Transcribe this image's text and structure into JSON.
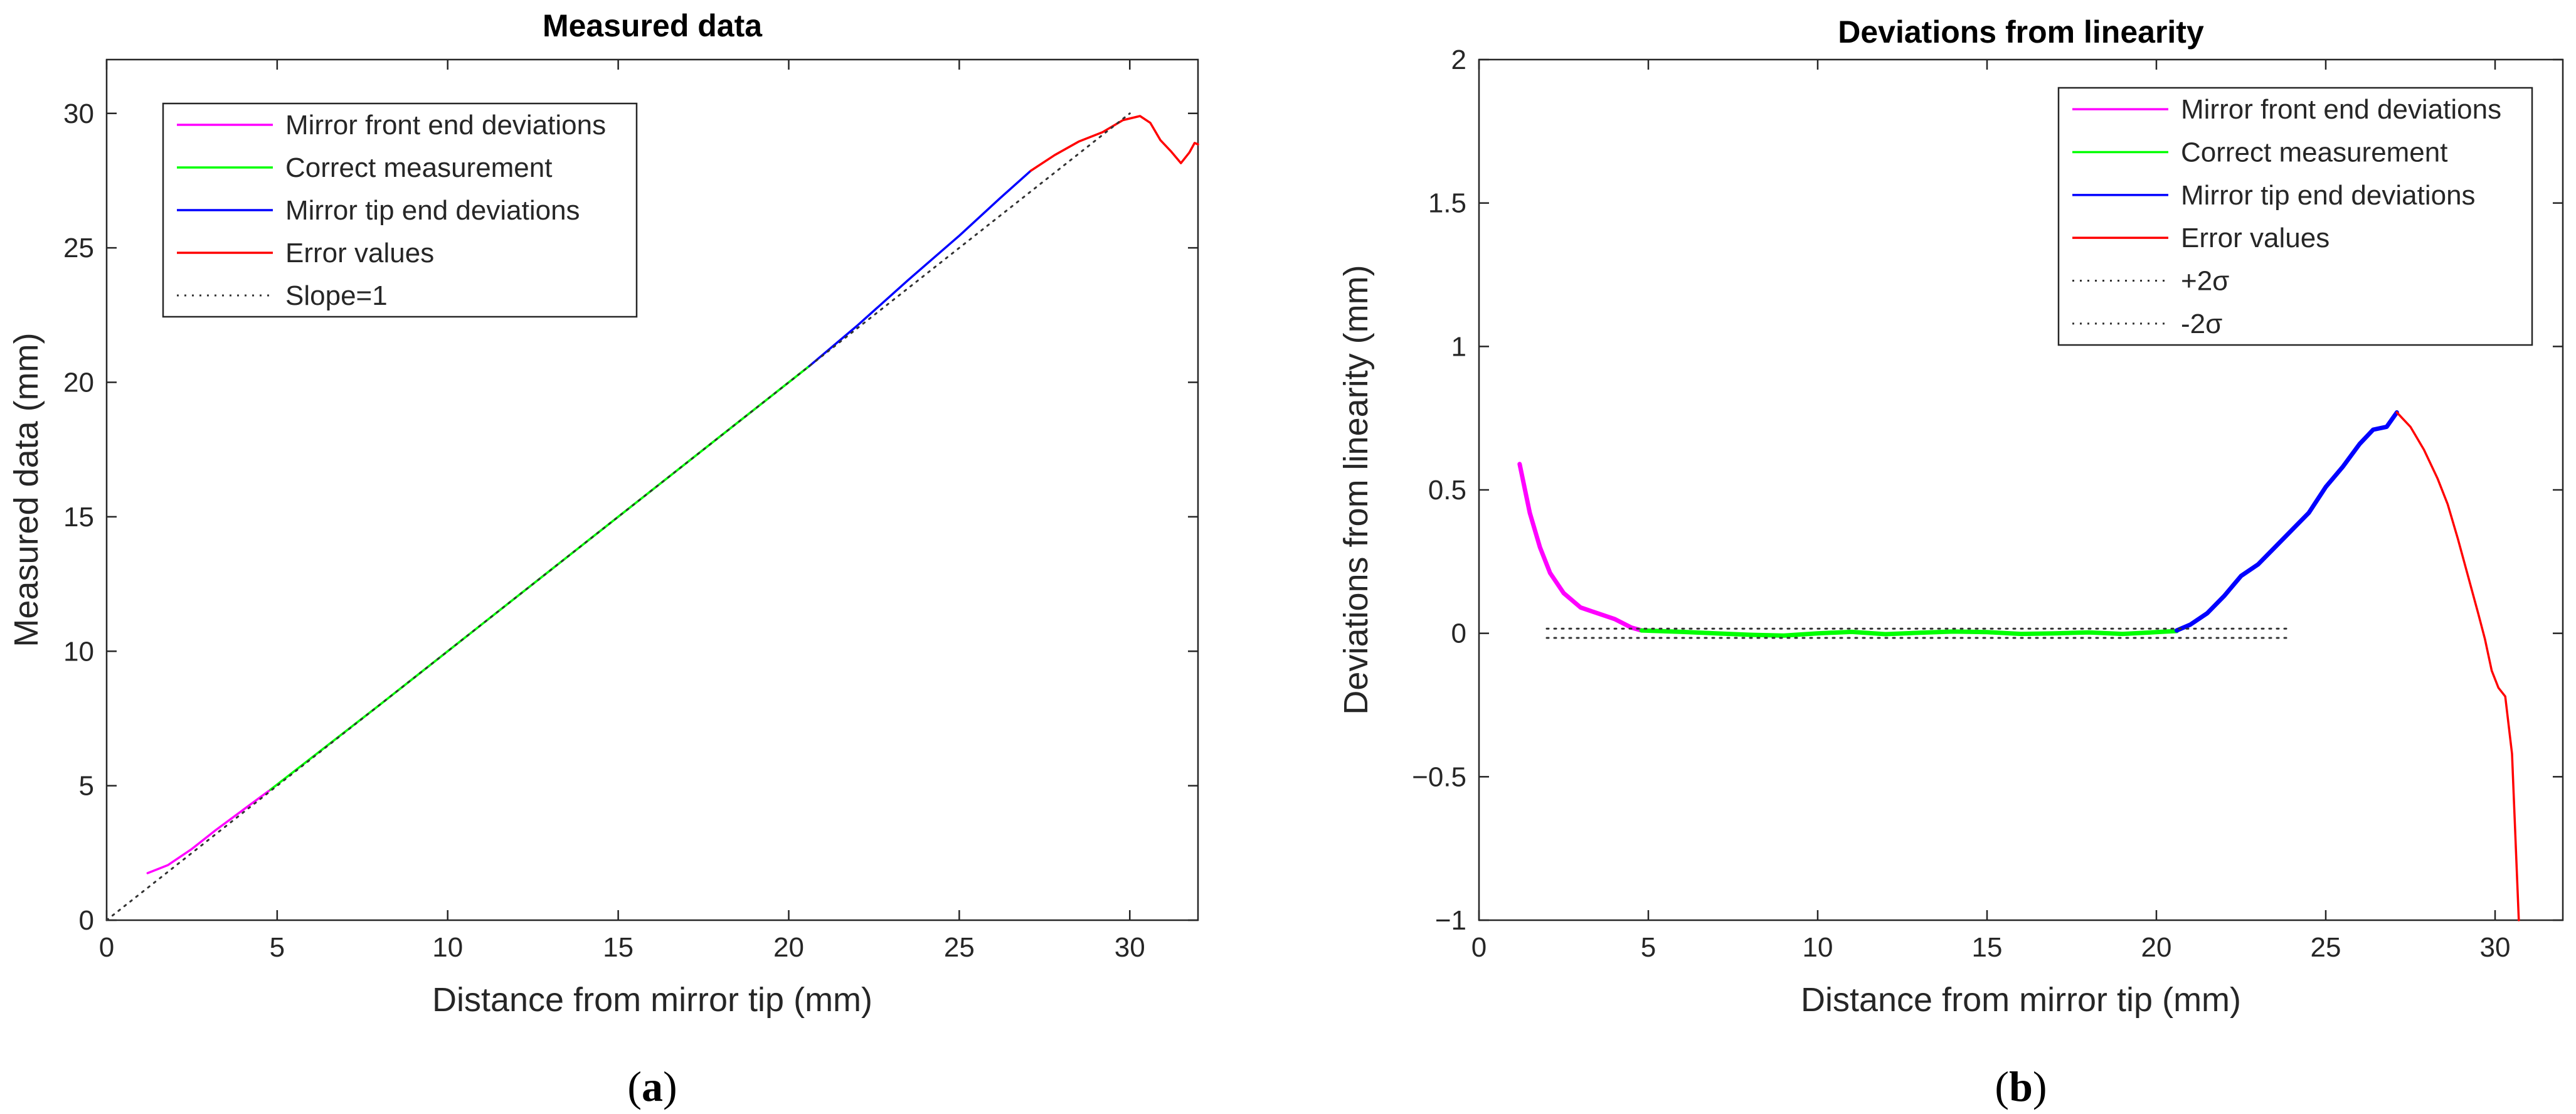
{
  "chart_data": [
    {
      "type": "line",
      "title": "Measured data",
      "xlabel": "Distance from mirror tip (mm)",
      "ylabel": "Measured data (mm)",
      "xlim": [
        0,
        32
      ],
      "ylim": [
        0,
        32
      ],
      "xticks": [
        0,
        5,
        10,
        15,
        20,
        25,
        30
      ],
      "yticks": [
        0,
        5,
        10,
        15,
        20,
        25,
        30
      ],
      "panel_label_prefix": "(",
      "panel_label_letter": "a",
      "panel_label_suffix": ")",
      "legend_position": "top-left",
      "series": [
        {
          "name": "Mirror front end deviations",
          "color": "#ff00ff",
          "style": "solid",
          "x": [
            1.2,
            1.8,
            2.5,
            3.2,
            4.0,
            4.8
          ],
          "y": [
            1.75,
            2.05,
            2.65,
            3.35,
            4.1,
            4.85
          ]
        },
        {
          "name": "Correct measurement",
          "color": "#00ff00",
          "style": "solid",
          "x": [
            4.8,
            8.0,
            12.0,
            16.0,
            20.6
          ],
          "y": [
            4.85,
            8.0,
            12.0,
            16.0,
            20.6
          ]
        },
        {
          "name": "Mirror tip end deviations",
          "color": "#0000ff",
          "style": "solid",
          "x": [
            20.6,
            22.0,
            23.5,
            25.0,
            26.2,
            27.1
          ],
          "y": [
            20.6,
            22.1,
            23.8,
            25.45,
            26.85,
            27.87
          ]
        },
        {
          "name": "Error values",
          "color": "#ff0000",
          "style": "solid",
          "x": [
            27.1,
            27.8,
            28.5,
            29.2,
            29.8,
            30.3,
            30.6,
            30.9,
            31.2,
            31.5,
            31.75,
            31.9,
            32.0
          ],
          "y": [
            27.87,
            28.45,
            28.95,
            29.3,
            29.75,
            29.9,
            29.65,
            29.0,
            28.6,
            28.15,
            28.55,
            28.9,
            28.85
          ]
        },
        {
          "name": "Slope=1",
          "color": "#000000",
          "style": "dotted",
          "x": [
            0,
            30
          ],
          "y": [
            0,
            30
          ]
        }
      ]
    },
    {
      "type": "line",
      "title": "Deviations from linearity",
      "xlabel": "Distance from mirror tip (mm)",
      "ylabel": "Deviations from linearity (mm)",
      "xlim": [
        0,
        32
      ],
      "ylim": [
        -1,
        2
      ],
      "xticks": [
        0,
        5,
        10,
        15,
        20,
        25,
        30
      ],
      "yticks": [
        -1,
        -0.5,
        0,
        0.5,
        1,
        1.5,
        2
      ],
      "panel_label_prefix": "(",
      "panel_label_letter": "b",
      "panel_label_suffix": ")",
      "legend_position": "top-right",
      "series": [
        {
          "name": "Mirror front end deviations",
          "color": "#ff00ff",
          "style": "solid",
          "x": [
            1.2,
            1.5,
            1.8,
            2.1,
            2.5,
            3.0,
            3.5,
            4.0,
            4.5,
            4.8
          ],
          "y": [
            0.59,
            0.42,
            0.3,
            0.21,
            0.14,
            0.09,
            0.07,
            0.05,
            0.02,
            0.01
          ]
        },
        {
          "name": "Correct measurement",
          "color": "#00ff00",
          "style": "solid",
          "x": [
            4.8,
            6,
            7,
            8,
            9,
            10,
            11,
            12,
            13,
            14,
            15,
            16,
            17,
            18,
            19,
            20,
            20.6
          ],
          "y": [
            0.01,
            0.005,
            0.0,
            -0.005,
            -0.008,
            0.0,
            0.005,
            -0.003,
            0.002,
            0.006,
            0.004,
            -0.002,
            0.0,
            0.003,
            -0.002,
            0.004,
            0.008
          ]
        },
        {
          "name": "Mirror tip end deviations",
          "color": "#0000ff",
          "style": "solid",
          "x": [
            20.6,
            21.0,
            21.5,
            22.0,
            22.5,
            23.0,
            23.5,
            24.0,
            24.5,
            25.0,
            25.5,
            26.0,
            26.4,
            26.8,
            27.1
          ],
          "y": [
            0.01,
            0.03,
            0.07,
            0.13,
            0.2,
            0.24,
            0.3,
            0.36,
            0.42,
            0.51,
            0.58,
            0.66,
            0.71,
            0.72,
            0.77
          ]
        },
        {
          "name": "Error values",
          "color": "#ff0000",
          "style": "solid",
          "x": [
            27.1,
            27.5,
            27.9,
            28.3,
            28.6,
            28.9,
            29.2,
            29.5,
            29.7,
            29.9,
            30.1,
            30.3,
            30.5,
            30.7
          ],
          "y": [
            0.77,
            0.72,
            0.64,
            0.54,
            0.45,
            0.33,
            0.2,
            0.07,
            -0.02,
            -0.13,
            -0.19,
            -0.22,
            -0.42,
            -1.0
          ]
        },
        {
          "name": "+2σ",
          "color": "#000000",
          "style": "dotted",
          "x": [
            2,
            24
          ],
          "y": [
            0.016,
            0.016
          ]
        },
        {
          "name": "-2σ",
          "color": "#000000",
          "style": "dotted",
          "x": [
            2,
            24
          ],
          "y": [
            -0.016,
            -0.016
          ]
        }
      ]
    }
  ]
}
